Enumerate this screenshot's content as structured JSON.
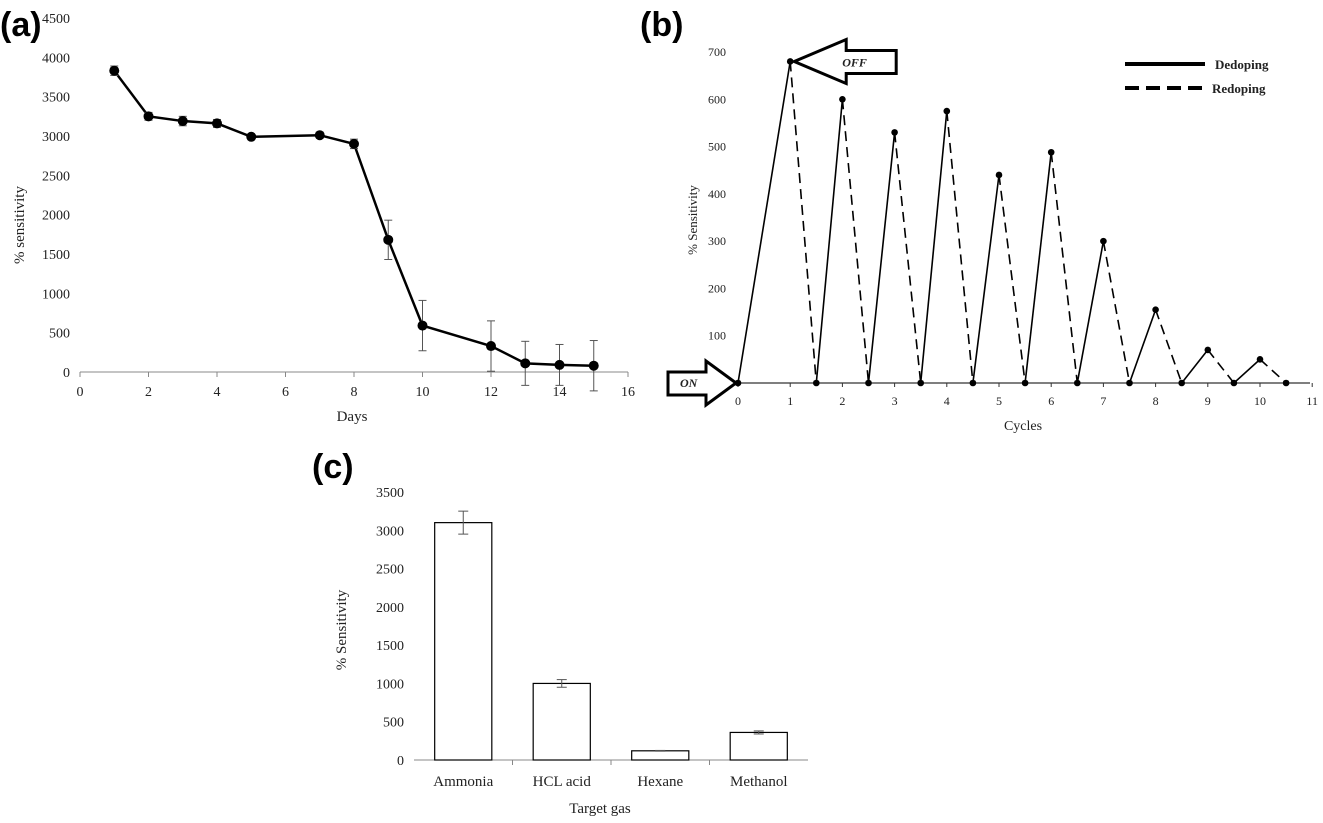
{
  "chart_data": [
    {
      "panel": "(a)",
      "type": "line",
      "xlabel": "Days",
      "ylabel": "% sensitivity",
      "xlim": [
        0,
        16
      ],
      "ylim": [
        0,
        4500
      ],
      "xticks": [
        0,
        2,
        4,
        6,
        8,
        10,
        12,
        14,
        16
      ],
      "yticks": [
        0,
        500,
        1000,
        1500,
        2000,
        2500,
        3000,
        3500,
        4000,
        4500
      ],
      "grid": false,
      "series": [
        {
          "x": [
            1,
            2,
            3,
            4,
            5,
            7,
            8,
            9,
            10,
            12,
            13,
            14,
            15
          ],
          "y": [
            3830,
            3250,
            3190,
            3160,
            2990,
            3010,
            2900,
            1680,
            590,
            330,
            110,
            90,
            80
          ],
          "err": [
            60,
            50,
            60,
            50,
            30,
            30,
            60,
            250,
            320,
            320,
            280,
            260,
            320
          ]
        }
      ]
    },
    {
      "panel": "(b)",
      "type": "line",
      "xlabel": "Cycles",
      "ylabel": "% Sensitivity",
      "xlim": [
        0,
        11
      ],
      "ylim": [
        0,
        700
      ],
      "xticks": [
        0,
        1,
        2,
        3,
        4,
        5,
        6,
        7,
        8,
        9,
        10,
        11
      ],
      "yticks": [
        0,
        100,
        200,
        300,
        400,
        500,
        600,
        700
      ],
      "legend": "top-right",
      "grid": false,
      "series": [
        {
          "name": "Dedoping",
          "style": "solid",
          "segments": [
            [
              [
                0,
                0
              ],
              [
                1,
                680
              ]
            ],
            [
              [
                1.5,
                0
              ],
              [
                2,
                600
              ]
            ],
            [
              [
                2.5,
                0
              ],
              [
                3,
                530
              ]
            ],
            [
              [
                3.5,
                0
              ],
              [
                4,
                575
              ]
            ],
            [
              [
                4.5,
                0
              ],
              [
                5,
                440
              ]
            ],
            [
              [
                5.5,
                0
              ],
              [
                6,
                488
              ]
            ],
            [
              [
                6.5,
                0
              ],
              [
                7,
                300
              ]
            ],
            [
              [
                7.5,
                0
              ],
              [
                8,
                155
              ]
            ],
            [
              [
                8.5,
                0
              ],
              [
                9,
                70
              ]
            ],
            [
              [
                9.5,
                0
              ],
              [
                10,
                50
              ]
            ]
          ]
        },
        {
          "name": "Redoping",
          "style": "dashed",
          "segments": [
            [
              [
                1,
                680
              ],
              [
                1.5,
                0
              ]
            ],
            [
              [
                2,
                600
              ],
              [
                2.5,
                0
              ]
            ],
            [
              [
                3,
                530
              ],
              [
                3.5,
                0
              ]
            ],
            [
              [
                4,
                575
              ],
              [
                4.5,
                0
              ]
            ],
            [
              [
                5,
                440
              ],
              [
                5.5,
                0
              ]
            ],
            [
              [
                6,
                488
              ],
              [
                6.5,
                0
              ]
            ],
            [
              [
                7,
                300
              ],
              [
                7.5,
                0
              ]
            ],
            [
              [
                8,
                155
              ],
              [
                8.5,
                0
              ]
            ],
            [
              [
                9,
                70
              ],
              [
                9.5,
                0
              ]
            ],
            [
              [
                10,
                50
              ],
              [
                10.5,
                0
              ]
            ]
          ]
        }
      ],
      "annotations": [
        {
          "text": "OFF",
          "x": 1,
          "y": 680,
          "kind": "left-arrow"
        },
        {
          "text": "ON",
          "x": 0,
          "y": 0,
          "kind": "right-arrow"
        }
      ]
    },
    {
      "panel": "(c)",
      "type": "bar",
      "xlabel": "Target gas",
      "ylabel": "% Sensitivity",
      "ylim": [
        0,
        3500
      ],
      "yticks": [
        0,
        500,
        1000,
        1500,
        2000,
        2500,
        3000,
        3500
      ],
      "categories": [
        "Ammonia",
        "HCL acid",
        "Hexane",
        "Methanol"
      ],
      "values": [
        3100,
        1000,
        120,
        360
      ],
      "err": [
        150,
        50,
        5,
        20
      ],
      "grid": false
    }
  ]
}
